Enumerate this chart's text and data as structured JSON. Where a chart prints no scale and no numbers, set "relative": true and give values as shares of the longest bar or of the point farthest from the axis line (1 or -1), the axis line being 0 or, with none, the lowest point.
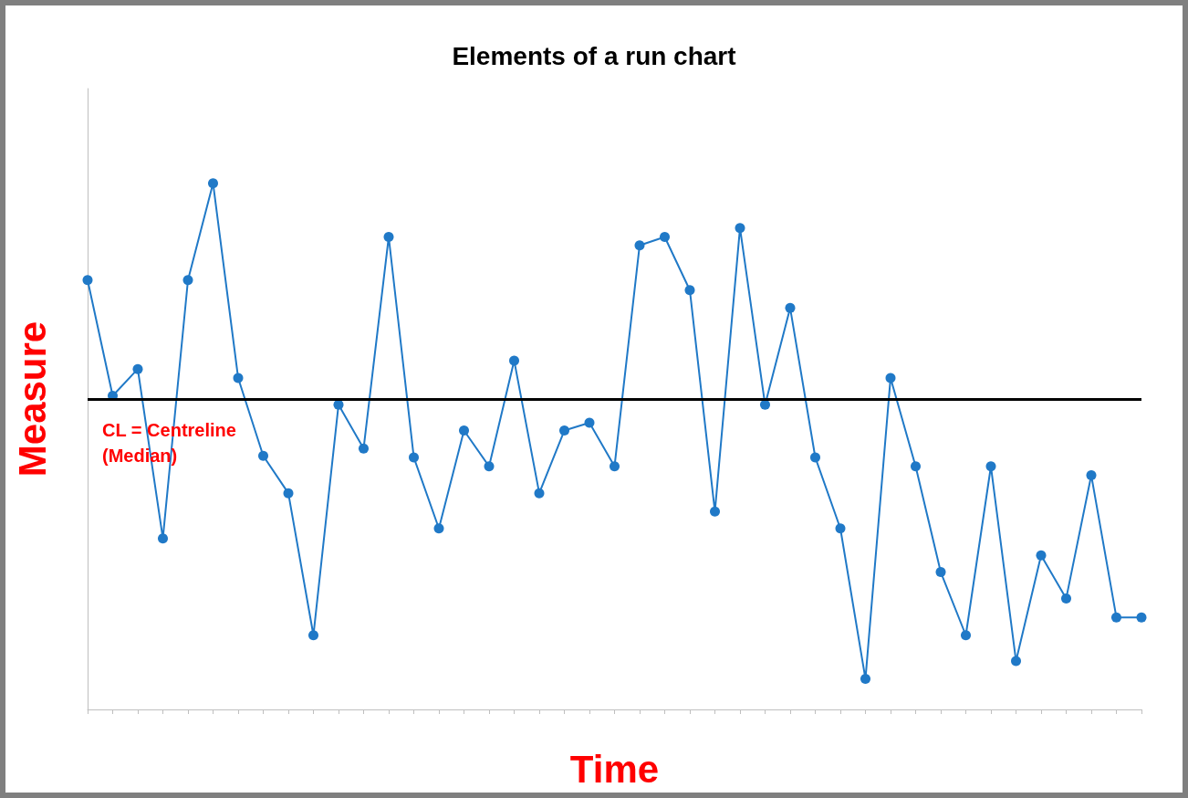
{
  "chart_data": {
    "type": "line",
    "title": "Elements of a run chart",
    "xlabel": "Time",
    "ylabel": "Measure",
    "relative": true,
    "categories": [
      null,
      null,
      null,
      null,
      null,
      null,
      null,
      null,
      null,
      null,
      null,
      null,
      null,
      null,
      null,
      null,
      null,
      null,
      null,
      null,
      null,
      null,
      null,
      null,
      null,
      null,
      null,
      null,
      null,
      null,
      null,
      null,
      null,
      null,
      null,
      null,
      null,
      null,
      null,
      null,
      null,
      null,
      null
    ],
    "series": [
      {
        "color": "#2079c7",
        "values": [
          0.816,
          0.596,
          0.647,
          0.325,
          0.816,
          1,
          0.63,
          0.482,
          0.411,
          0.141,
          0.579,
          0.496,
          0.898,
          0.479,
          0.344,
          0.53,
          0.462,
          0.663,
          0.411,
          0.53,
          0.545,
          0.462,
          0.882,
          0.898,
          0.797,
          0.376,
          0.915,
          0.579,
          0.763,
          0.479,
          0.344,
          0.058,
          0.63,
          0.462,
          0.261,
          0.141,
          0.462,
          0.092,
          0.293,
          0.211,
          0.445,
          0.175,
          0.175
        ]
      }
    ],
    "ref_lines": [
      {
        "axis": "y",
        "value": 0.586,
        "label": "CL = Centreline (Median)",
        "color": "#000000",
        "line_style": "solid"
      }
    ],
    "marker": "circle",
    "line_style": "solid",
    "grid": false
  }
}
